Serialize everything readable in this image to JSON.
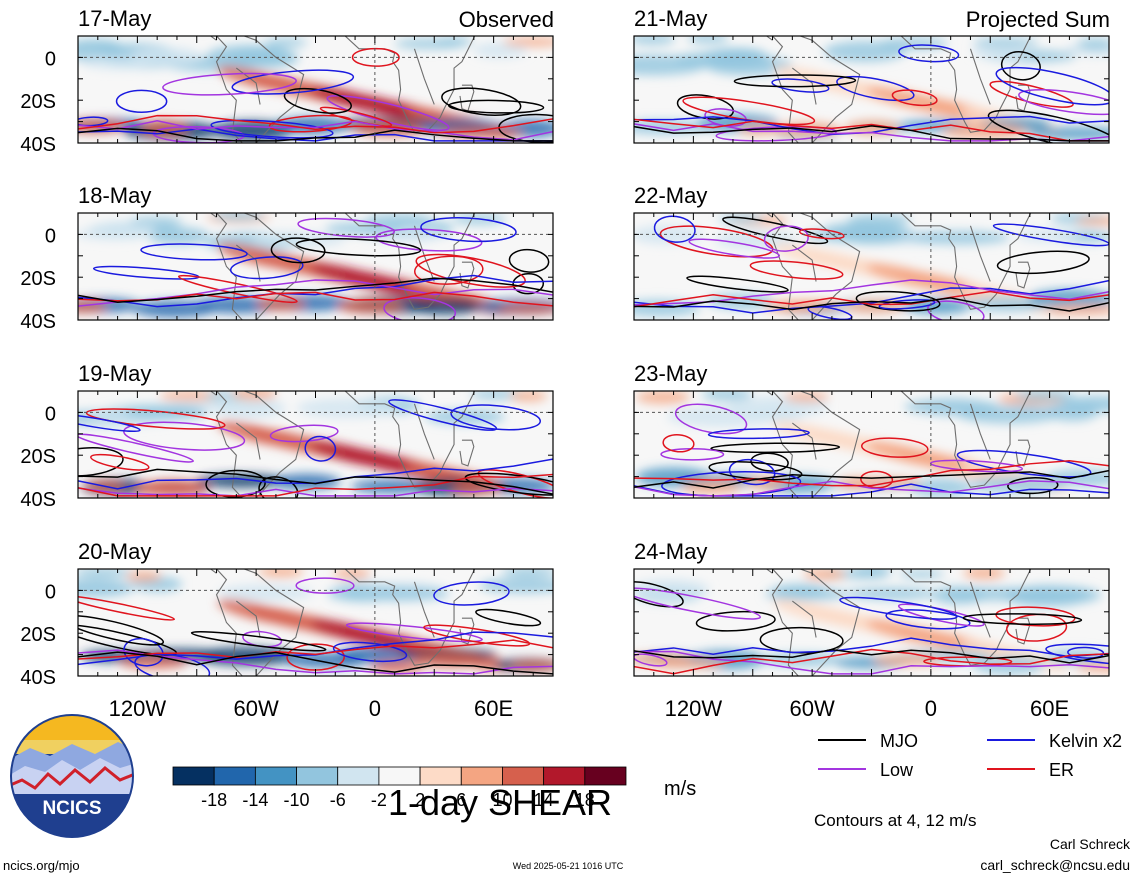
{
  "chart_data": {
    "type": "heatmap",
    "title": "1-day SHEAR",
    "units": "m/s",
    "column_titles": {
      "left": "Observed",
      "right": "Projected Sum"
    },
    "lat_ticks": [
      "0",
      "20S",
      "40S"
    ],
    "lon_ticks": [
      "120W",
      "60W",
      "0",
      "60E"
    ],
    "panels": [
      {
        "date": "17-May",
        "column": "left"
      },
      {
        "date": "18-May",
        "column": "left"
      },
      {
        "date": "19-May",
        "column": "left"
      },
      {
        "date": "20-May",
        "column": "left"
      },
      {
        "date": "21-May",
        "column": "right"
      },
      {
        "date": "22-May",
        "column": "right"
      },
      {
        "date": "23-May",
        "column": "right"
      },
      {
        "date": "24-May",
        "column": "right"
      }
    ],
    "colorbar": {
      "labels": [
        "-18",
        "-14",
        "-10",
        "-6",
        "-2",
        "2",
        "6",
        "10",
        "14",
        "18"
      ],
      "colors": [
        "#053061",
        "#2166ac",
        "#4393c3",
        "#92c5de",
        "#d1e5f0",
        "#f7f7f7",
        "#fddbc7",
        "#f4a582",
        "#d6604d",
        "#b2182b",
        "#67001f"
      ]
    },
    "legend": [
      {
        "label": "MJO",
        "color": "#000000"
      },
      {
        "label": "Kelvin x2",
        "color": "#1a1adf"
      },
      {
        "label": "Low",
        "color": "#a335e0"
      },
      {
        "label": "ER",
        "color": "#e0141e"
      }
    ],
    "contour_note": "Contours at 4, 12 m/s"
  },
  "logo_text": "NCICS",
  "footer": {
    "site": "ncics.org/mjo",
    "timestamp": "Wed 2025-05-21 1016 UTC",
    "author": "Carl Schreck",
    "email": "carl_schreck@ncsu.edu"
  }
}
